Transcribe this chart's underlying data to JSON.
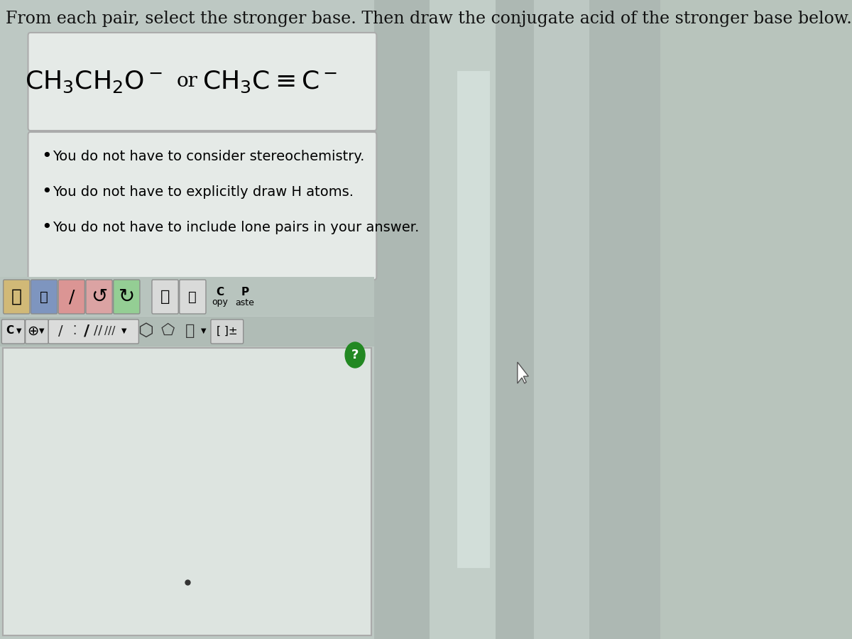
{
  "title_line": "From each pair, select the stronger base. Then draw the conjugate acid of the stronger base below.",
  "compound1": "CH$_3$CH$_2$O$^-$",
  "or_text": "or",
  "compound2": "CH$_3$C$\\equiv$C$^-$",
  "bullet1": "You do not have to consider stereochemistry.",
  "bullet2": "You do not have to explicitly draw H atoms.",
  "bullet3": "You do not have to include lone pairs in your answer.",
  "bg_color": "#b8c4bc",
  "left_panel_bg": "#c8d2ce",
  "box_bg": "#e8ecea",
  "toolbar1_bg": "#c0c8c4",
  "toolbar2_bg": "#b8c0bc",
  "drawing_bg": "#dde4e0",
  "right_bg": "#b0bdb8",
  "text_color": "#111111",
  "title_fontsize": 17,
  "chem_fontsize": 24,
  "bullet_fontsize": 14,
  "or_fontsize": 20
}
